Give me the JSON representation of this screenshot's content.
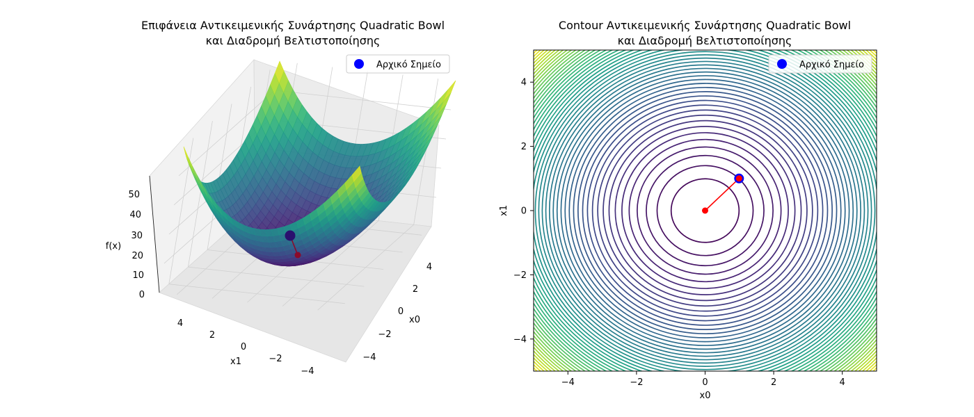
{
  "chart_data": [
    {
      "type": "surface",
      "title_line1": "Επιφάνεια Αντικειμενικής Συνάρτησης Quadratic Bowl",
      "title_line2": "και Διαδρομή Βελτιστοποίησης",
      "xlabel": "x0",
      "ylabel": "x1",
      "zlabel": "f(x)",
      "xlim": [
        -5,
        5
      ],
      "ylim": [
        -5,
        5
      ],
      "zlim": [
        0,
        50
      ],
      "x_ticks": [
        "−4",
        "−2",
        "0",
        "2",
        "4"
      ],
      "y_ticks": [
        "4",
        "2",
        "0",
        "−2",
        "−4"
      ],
      "z_ticks": [
        "0",
        "10",
        "20",
        "30",
        "40",
        "50"
      ],
      "function": "f(x) = x0^2 + x1^2",
      "colormap": "viridis",
      "path": [
        {
          "x0": 1,
          "x1": 1,
          "f": 2
        },
        {
          "x0": 0,
          "x1": 0,
          "f": 0
        }
      ],
      "start_point": {
        "x0": 1,
        "x1": 1,
        "f": 2
      },
      "legend": {
        "label": "Αρχικό Σημείο",
        "placement": "upper right"
      },
      "colors": {
        "path": "#8b0a2a",
        "start_marker": "#2a0f6e"
      }
    },
    {
      "type": "contour",
      "title_line1": "Contour Αντικειμενικής Συνάρτησης Quadratic Bowl",
      "title_line2": "και Διαδρομή Βελτιστοποίησης",
      "xlabel": "x0",
      "ylabel": "x1",
      "xlim": [
        -5,
        5
      ],
      "ylim": [
        -5,
        5
      ],
      "x_ticks": [
        "−4",
        "−2",
        "0",
        "2",
        "4"
      ],
      "y_ticks": [
        "−4",
        "−2",
        "0",
        "2",
        "4"
      ],
      "function": "f(x) = x0^2 + x1^2",
      "levels": 50,
      "colormap": "viridis",
      "path": [
        {
          "x0": 1,
          "x1": 1
        },
        {
          "x0": 0,
          "x1": 0
        }
      ],
      "start_point": {
        "x0": 1,
        "x1": 1
      },
      "legend": {
        "label": "Αρχικό Σημείο",
        "placement": "upper right"
      },
      "colors": {
        "path": "#ff0000",
        "start_marker": "#0000ff"
      }
    }
  ]
}
